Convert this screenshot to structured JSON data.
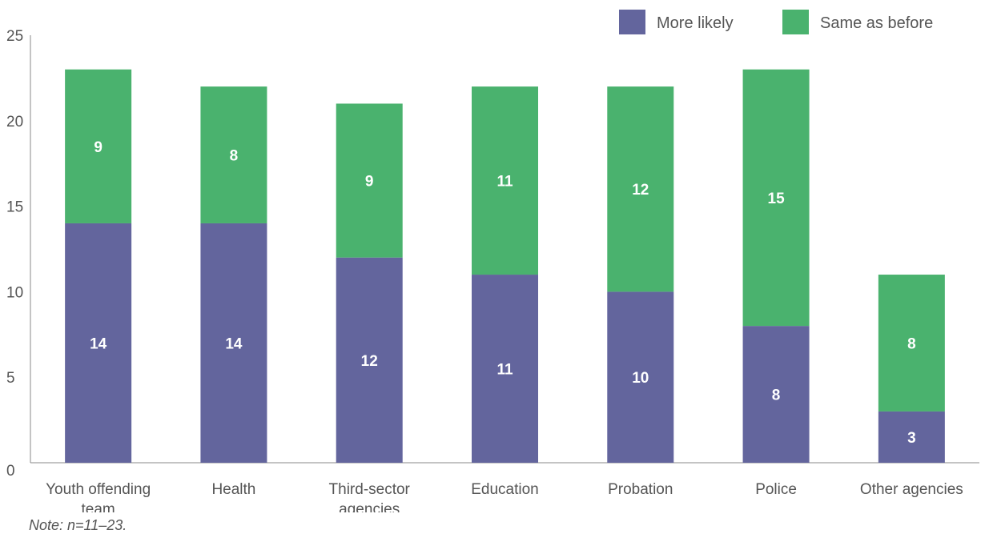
{
  "chart_data": {
    "type": "bar",
    "stacked": true,
    "categories": [
      "Youth offending team",
      "Health",
      "Third-sector agencies",
      "Education",
      "Probation",
      "Police",
      "Other agencies"
    ],
    "series": [
      {
        "name": "More likely",
        "color": "#63659d",
        "values": [
          14,
          14,
          12,
          11,
          10,
          8,
          3
        ]
      },
      {
        "name": "Same as before",
        "color": "#4ab26e",
        "values": [
          9,
          8,
          9,
          11,
          12,
          15,
          8
        ]
      }
    ],
    "ylim": [
      0,
      25
    ],
    "yticks": [
      0,
      5,
      10,
      15,
      20,
      25
    ],
    "grid": false,
    "legend": "top-right"
  },
  "note": "Note: n=11–23."
}
